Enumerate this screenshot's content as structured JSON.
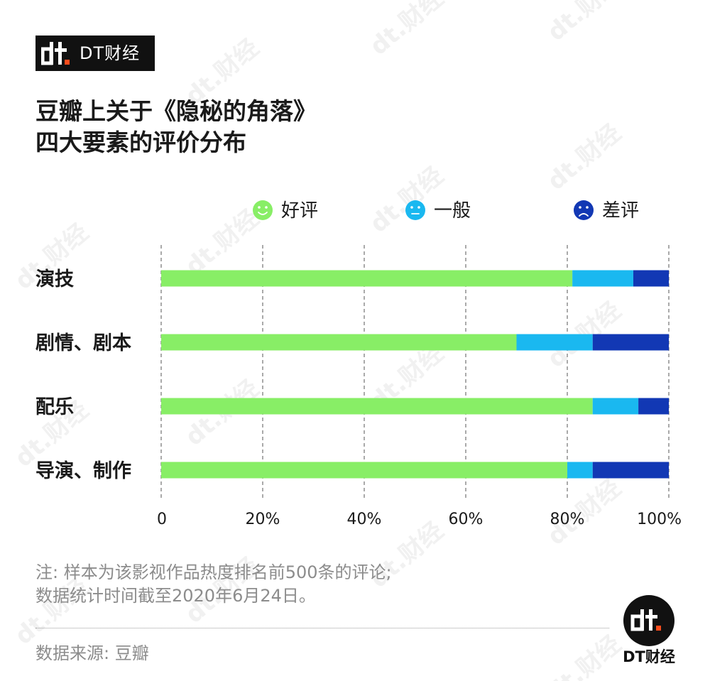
{
  "brand": {
    "name": "DT财经",
    "mark": "dt",
    "watermark_text": "dt.财经",
    "colors": {
      "logo_bg": "#111111",
      "logo_accent": "#ff4c1c"
    }
  },
  "title_lines": [
    "豆瓣上关于《隐秘的角落》",
    "四大要素的评价分布"
  ],
  "chart_data": {
    "type": "bar",
    "orientation": "horizontal",
    "stacked": true,
    "categories": [
      "演技",
      "剧情、剧本",
      "配乐",
      "导演、制作"
    ],
    "series": [
      {
        "name": "好评",
        "color": "#88ee66",
        "icon": "smile-face-icon",
        "values": [
          81,
          70,
          85,
          80
        ]
      },
      {
        "name": "一般",
        "color": "#1ab8f0",
        "icon": "neutral-face-icon",
        "values": [
          12,
          15,
          9,
          5
        ]
      },
      {
        "name": "差评",
        "color": "#1238b4",
        "icon": "frown-face-icon",
        "values": [
          7,
          15,
          6,
          15
        ]
      }
    ],
    "x_ticks": [
      "0",
      "20%",
      "40%",
      "60%",
      "80%",
      "100%"
    ],
    "xlim": [
      0,
      100
    ],
    "grid": true,
    "legend_position": "top"
  },
  "notes": [
    "注: 样本为该影视作品热度排名前500条的评论;",
    "数据统计时间截至2020年6月24日。"
  ],
  "source": "数据来源: 豆瓣"
}
